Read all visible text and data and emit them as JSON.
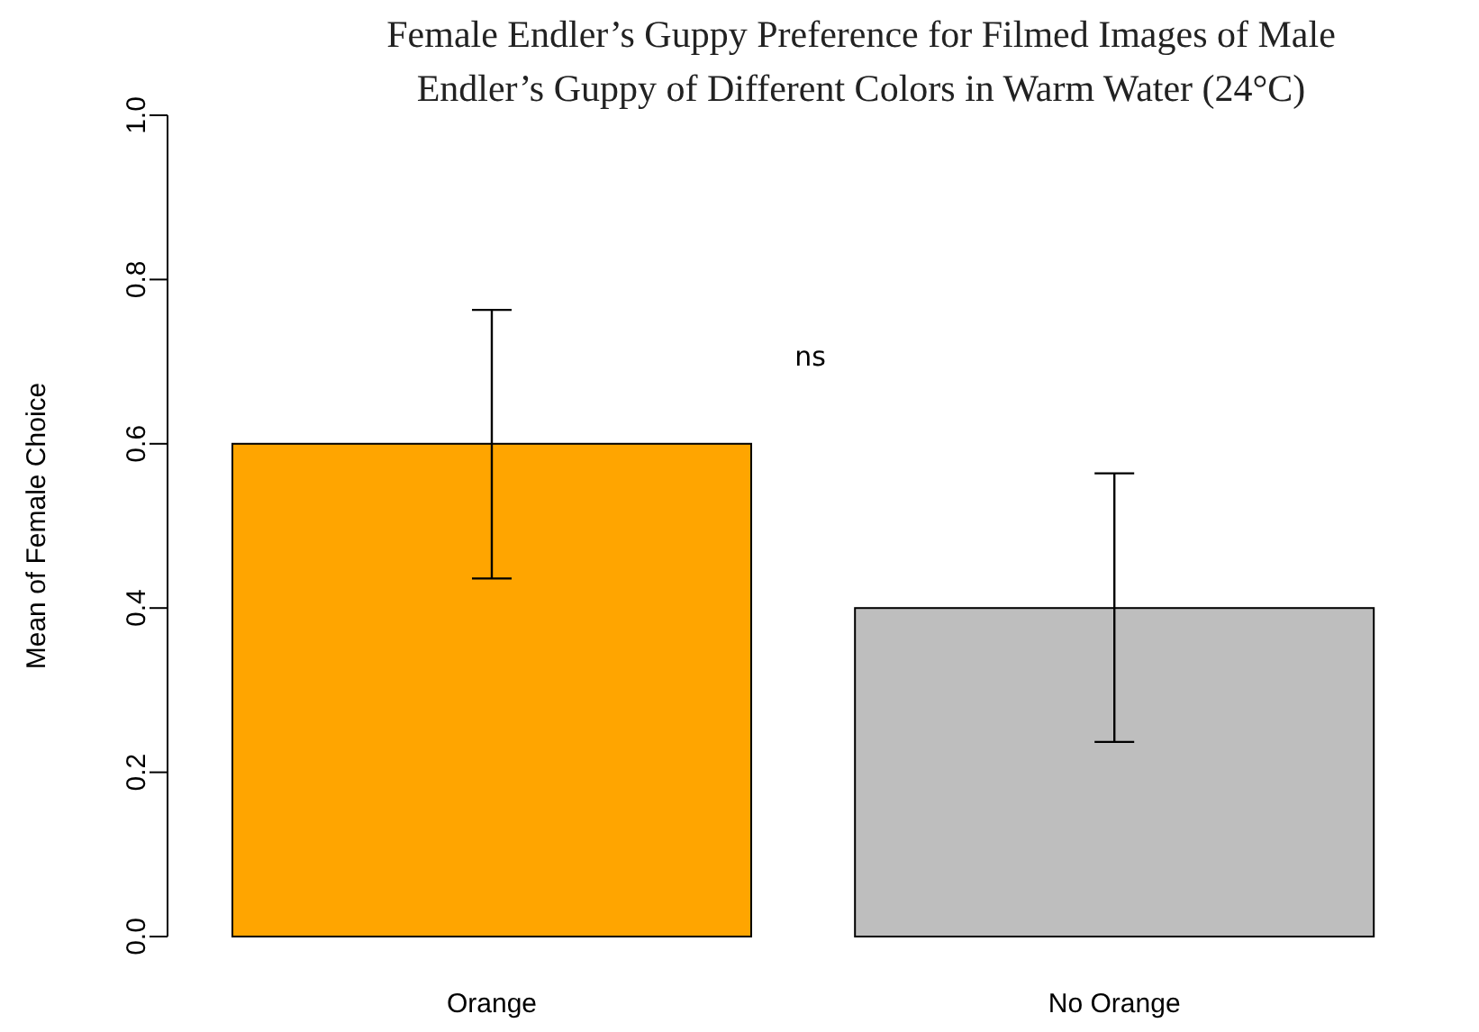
{
  "chart_data": {
    "type": "bar",
    "title": "Female Endler’s Guppy Preference for Filmed Images of Male\nEndler’s Guppy of Different Colors in Warm Water (24°C)",
    "ylabel": "Mean of Female Choice",
    "categories": [
      "Orange",
      "No Orange"
    ],
    "values": [
      0.6,
      0.4
    ],
    "colors": [
      "#ffa500",
      "#bebebe"
    ],
    "errors": [
      [
        0.436,
        0.763
      ],
      [
        0.237,
        0.564
      ]
    ],
    "ylim": [
      0,
      1
    ],
    "yticks": [
      {
        "value": 0,
        "label": "0.0"
      },
      {
        "value": 0.2,
        "label": "0.2"
      },
      {
        "value": 0.4,
        "label": "0.4"
      },
      {
        "value": 0.6,
        "label": "0.6"
      },
      {
        "value": 0.8,
        "label": "0.8"
      },
      {
        "value": 1,
        "label": "1.0"
      }
    ],
    "annotations": [
      "ns"
    ],
    "grid": false
  }
}
